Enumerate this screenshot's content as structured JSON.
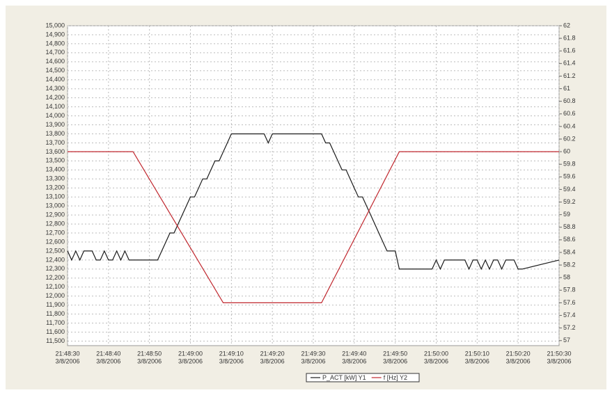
{
  "chart_data": {
    "type": "line",
    "xlim": [
      "21:48:30",
      "21:50:30"
    ],
    "xticks": [
      {
        "value": "21:48:30",
        "label": "21:48:30",
        "date": "3/8/2006"
      },
      {
        "value": "21:48:40",
        "label": "21:48:40",
        "date": "3/8/2006"
      },
      {
        "value": "21:48:50",
        "label": "21:48:50",
        "date": "3/8/2006"
      },
      {
        "value": "21:49:00",
        "label": "21:49:00",
        "date": "3/8/2006"
      },
      {
        "value": "21:49:10",
        "label": "21:49:10",
        "date": "3/8/2006"
      },
      {
        "value": "21:49:20",
        "label": "21:49:20",
        "date": "3/8/2006"
      },
      {
        "value": "21:49:30",
        "label": "21:49:30",
        "date": "3/8/2006"
      },
      {
        "value": "21:49:40",
        "label": "21:49:40",
        "date": "3/8/2006"
      },
      {
        "value": "21:49:50",
        "label": "21:49:50",
        "date": "3/8/2006"
      },
      {
        "value": "21:50:00",
        "label": "21:50:00",
        "date": "3/8/2006"
      },
      {
        "value": "21:50:10",
        "label": "21:50:10",
        "date": "3/8/2006"
      },
      {
        "value": "21:50:20",
        "label": "21:50:20",
        "date": "3/8/2006"
      },
      {
        "value": "21:50:30",
        "label": "21:50:30",
        "date": "3/8/2006"
      }
    ],
    "ylim": [
      11450,
      15000
    ],
    "yticks": [
      {
        "value": 11500,
        "label": "11,500"
      },
      {
        "value": 11600,
        "label": "11,600"
      },
      {
        "value": 11700,
        "label": "11,700"
      },
      {
        "value": 11800,
        "label": "11,800"
      },
      {
        "value": 11900,
        "label": "11,900"
      },
      {
        "value": 12000,
        "label": "12,000"
      },
      {
        "value": 12100,
        "label": "12,100"
      },
      {
        "value": 12200,
        "label": "12,200"
      },
      {
        "value": 12300,
        "label": "12,300"
      },
      {
        "value": 12400,
        "label": "12,400"
      },
      {
        "value": 12500,
        "label": "12,500"
      },
      {
        "value": 12600,
        "label": "12,600"
      },
      {
        "value": 12700,
        "label": "12,700"
      },
      {
        "value": 12800,
        "label": "12,800"
      },
      {
        "value": 12900,
        "label": "12,900"
      },
      {
        "value": 13000,
        "label": "13,000"
      },
      {
        "value": 13100,
        "label": "13,100"
      },
      {
        "value": 13200,
        "label": "13,200"
      },
      {
        "value": 13300,
        "label": "13,300"
      },
      {
        "value": 13400,
        "label": "13,400"
      },
      {
        "value": 13500,
        "label": "13,500"
      },
      {
        "value": 13600,
        "label": "13,600"
      },
      {
        "value": 13700,
        "label": "13,700"
      },
      {
        "value": 13800,
        "label": "13,800"
      },
      {
        "value": 13900,
        "label": "13,900"
      },
      {
        "value": 14000,
        "label": "14,000"
      },
      {
        "value": 14100,
        "label": "14,100"
      },
      {
        "value": 14200,
        "label": "14,200"
      },
      {
        "value": 14300,
        "label": "14,300"
      },
      {
        "value": 14400,
        "label": "14,400"
      },
      {
        "value": 14500,
        "label": "14,500"
      },
      {
        "value": 14600,
        "label": "14,600"
      },
      {
        "value": 14700,
        "label": "14,700"
      },
      {
        "value": 14800,
        "label": "14,800"
      },
      {
        "value": 14900,
        "label": "14,900"
      },
      {
        "value": 15000,
        "label": "15,000"
      }
    ],
    "y2lim": [
      56.92,
      62
    ],
    "y2ticks": [
      57,
      57.2,
      57.4,
      57.6,
      57.8,
      58,
      58.2,
      58.4,
      58.6,
      58.8,
      59,
      59.2,
      59.4,
      59.6,
      59.8,
      60,
      60.2,
      60.4,
      60.6,
      60.8,
      61,
      61.2,
      61.4,
      61.6,
      61.8,
      62
    ],
    "grid": true,
    "legend": "bottom",
    "series": [
      {
        "name": "P_ACT [kW] Y1",
        "color": "#1a1a1a",
        "x": [
          "21:48:30",
          "21:48:31",
          "21:48:32",
          "21:48:33",
          "21:48:34",
          "21:48:36",
          "21:48:37",
          "21:48:38",
          "21:48:39",
          "21:48:40",
          "21:48:41",
          "21:48:42",
          "21:48:43",
          "21:48:44",
          "21:48:45",
          "21:48:52",
          "21:48:53",
          "21:48:54",
          "21:48:55",
          "21:48:56",
          "21:48:57",
          "21:48:58",
          "21:48:59",
          "21:49:00",
          "21:49:01",
          "21:49:02",
          "21:49:03",
          "21:49:04",
          "21:49:05",
          "21:49:06",
          "21:49:07",
          "21:49:08",
          "21:49:09",
          "21:49:10",
          "21:49:18",
          "21:49:19",
          "21:49:20",
          "21:49:32",
          "21:49:33",
          "21:49:34",
          "21:49:35",
          "21:49:36",
          "21:49:37",
          "21:49:38",
          "21:49:39",
          "21:49:40",
          "21:49:41",
          "21:49:42",
          "21:49:43",
          "21:49:44",
          "21:49:45",
          "21:49:46",
          "21:49:47",
          "21:49:48",
          "21:49:50",
          "21:49:51",
          "21:49:59",
          "21:50:00",
          "21:50:01",
          "21:50:02",
          "21:50:07",
          "21:50:08",
          "21:50:09",
          "21:50:10",
          "21:50:11",
          "21:50:12",
          "21:50:13",
          "21:50:14",
          "21:50:15",
          "21:50:16",
          "21:50:17",
          "21:50:19",
          "21:50:20",
          "21:50:21",
          "21:50:30"
        ],
        "values": [
          12500,
          12400,
          12500,
          12400,
          12500,
          12500,
          12400,
          12400,
          12500,
          12400,
          12400,
          12500,
          12400,
          12500,
          12400,
          12400,
          12500,
          12600,
          12700,
          12700,
          12800,
          12900,
          13000,
          13100,
          13100,
          13200,
          13300,
          13300,
          13400,
          13500,
          13500,
          13600,
          13700,
          13800,
          13800,
          13700,
          13800,
          13800,
          13700,
          13700,
          13600,
          13500,
          13400,
          13400,
          13300,
          13200,
          13100,
          13100,
          13000,
          12900,
          12800,
          12700,
          12600,
          12500,
          12500,
          12300,
          12300,
          12400,
          12300,
          12400,
          12400,
          12300,
          12400,
          12400,
          12300,
          12400,
          12300,
          12400,
          12400,
          12300,
          12400,
          12400,
          12300,
          12300,
          12400
        ]
      },
      {
        "name": "f [Hz] Y2",
        "color": "#c0262d",
        "axis": "y2",
        "x": [
          "21:48:30",
          "21:48:46",
          "21:49:08",
          "21:49:32",
          "21:49:51",
          "21:50:30"
        ],
        "values": [
          60,
          60,
          57.6,
          57.6,
          60,
          60
        ]
      }
    ]
  }
}
